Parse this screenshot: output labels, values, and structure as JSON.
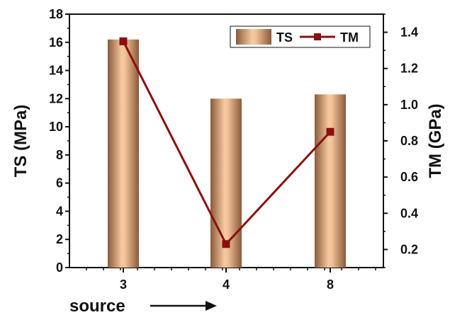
{
  "chart_data": {
    "type": "bar",
    "categories": [
      "3",
      "4",
      "8"
    ],
    "xlabel": "source",
    "ylabel_left": "TS (MPa)",
    "ylabel_right": "TM (GPa)",
    "ylim_left": [
      0,
      18
    ],
    "ylim_right": [
      0.1,
      1.5
    ],
    "yticks_left": [
      "0",
      "2",
      "4",
      "6",
      "8",
      "10",
      "12",
      "14",
      "16",
      "18"
    ],
    "yticks_right": [
      "0.2",
      "0.4",
      "0.6",
      "0.8",
      "1.0",
      "1.2",
      "1.4"
    ],
    "series": [
      {
        "name": "TS",
        "type": "bar",
        "axis": "left",
        "values": [
          16.2,
          12.0,
          12.3
        ],
        "color": "#d9a07a"
      },
      {
        "name": "TM",
        "type": "line",
        "axis": "right",
        "values": [
          1.35,
          0.23,
          0.85
        ],
        "color": "#8b0f0f"
      }
    ],
    "legend_position": "top-right",
    "grid": false
  }
}
